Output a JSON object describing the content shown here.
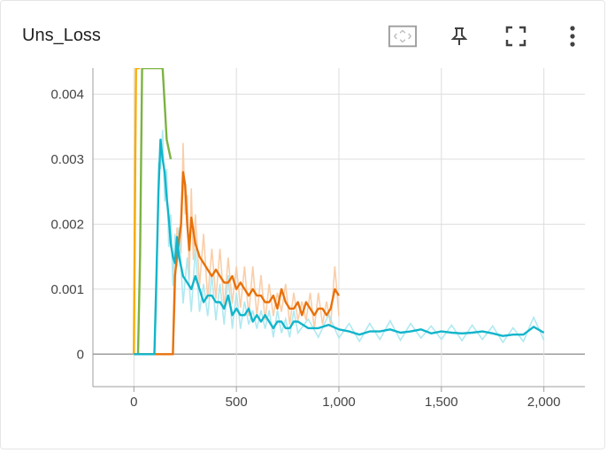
{
  "header": {
    "title": "Uns_Loss",
    "icons": [
      "fit-domain-icon",
      "pin-icon",
      "fullscreen-icon",
      "more-vert-icon"
    ]
  },
  "colors": {
    "orange": "#e8710a",
    "orange_raw": "#f9c9a0",
    "cyan": "#12b5cb",
    "cyan_raw": "#a6e7f0",
    "green": "#7cb342",
    "yellow": "#f9ab00",
    "grid": "#dddddd",
    "axis": "#9e9e9e"
  },
  "chart_data": {
    "type": "line",
    "title": "Uns_Loss",
    "xlim": [
      -200,
      2200
    ],
    "ylim": [
      -0.0005,
      0.0044
    ],
    "x_ticks": [
      0,
      500,
      1000,
      1500,
      2000
    ],
    "x_tick_labels": [
      "0",
      "500",
      "1,000",
      "1,500",
      "2,000"
    ],
    "y_ticks": [
      0,
      0.001,
      0.002,
      0.003,
      0.004
    ],
    "y_tick_labels": [
      "0",
      "0.001",
      "0.002",
      "0.003",
      "0.004"
    ],
    "grid": true,
    "series": [
      {
        "color_key": "green",
        "x": [
          20,
          30,
          40,
          60,
          80,
          100,
          120,
          140,
          160,
          180
        ],
        "y": [
          0,
          0.0015,
          0.0044,
          0.0044,
          0.0044,
          0.0044,
          0.0044,
          0.0044,
          0.0033,
          0.003
        ]
      },
      {
        "color_key": "yellow",
        "x": [
          0,
          10,
          20,
          30
        ],
        "y": [
          0,
          0.0044,
          0.0044,
          0.0044
        ]
      },
      {
        "color_key": "orange",
        "x": [
          0,
          190,
          200,
          210,
          230,
          240,
          250,
          260,
          270,
          280,
          290,
          300,
          320,
          340,
          360,
          380,
          400,
          420,
          440,
          460,
          480,
          500,
          520,
          540,
          560,
          580,
          600,
          620,
          640,
          660,
          680,
          700,
          720,
          740,
          760,
          780,
          800,
          820,
          840,
          860,
          880,
          900,
          920,
          940,
          960,
          980,
          1000
        ],
        "y": [
          0,
          0,
          0.0012,
          0.0015,
          0.002,
          0.0028,
          0.0026,
          0.002,
          0.0016,
          0.0021,
          0.0019,
          0.0017,
          0.0015,
          0.0014,
          0.0013,
          0.0012,
          0.0013,
          0.0012,
          0.0011,
          0.0011,
          0.0012,
          0.001,
          0.0011,
          0.001,
          0.0009,
          0.001,
          0.0009,
          0.0009,
          0.0008,
          0.0008,
          0.0009,
          0.0007,
          0.001,
          0.0008,
          0.0007,
          0.0007,
          0.0008,
          0.0006,
          0.0008,
          0.0007,
          0.0006,
          0.0007,
          0.0007,
          0.0006,
          0.0007,
          0.001,
          0.0009
        ]
      },
      {
        "color_key": "cyan",
        "x": [
          0,
          100,
          110,
          120,
          130,
          140,
          150,
          160,
          170,
          180,
          190,
          200,
          210,
          220,
          240,
          260,
          280,
          300,
          320,
          340,
          360,
          380,
          400,
          420,
          440,
          460,
          480,
          500,
          520,
          540,
          560,
          580,
          600,
          620,
          640,
          660,
          680,
          700,
          720,
          740,
          760,
          780,
          800,
          850,
          900,
          950,
          1000,
          1050,
          1100,
          1150,
          1200,
          1250,
          1300,
          1350,
          1400,
          1450,
          1500,
          1550,
          1600,
          1650,
          1700,
          1750,
          1800,
          1850,
          1900,
          1950,
          2000
        ],
        "y": [
          0,
          0,
          0.0012,
          0.0025,
          0.0033,
          0.003,
          0.0028,
          0.0024,
          0.0021,
          0.0017,
          0.0015,
          0.0014,
          0.0018,
          0.0015,
          0.0012,
          0.0011,
          0.001,
          0.0012,
          0.001,
          0.0008,
          0.0009,
          0.0009,
          0.0008,
          0.0008,
          0.0007,
          0.0009,
          0.0006,
          0.0007,
          0.0006,
          0.0006,
          0.0007,
          0.0005,
          0.0006,
          0.0005,
          0.0006,
          0.0005,
          0.0004,
          0.0005,
          0.0005,
          0.0004,
          0.0004,
          0.0005,
          0.0005,
          0.0004,
          0.0004,
          0.00045,
          0.00038,
          0.00035,
          0.0003,
          0.00035,
          0.00035,
          0.00038,
          0.00033,
          0.00035,
          0.00038,
          0.00032,
          0.00035,
          0.00033,
          0.00032,
          0.00033,
          0.00035,
          0.00032,
          0.00028,
          0.0003,
          0.0003,
          0.00042,
          0.00033
        ]
      }
    ]
  }
}
